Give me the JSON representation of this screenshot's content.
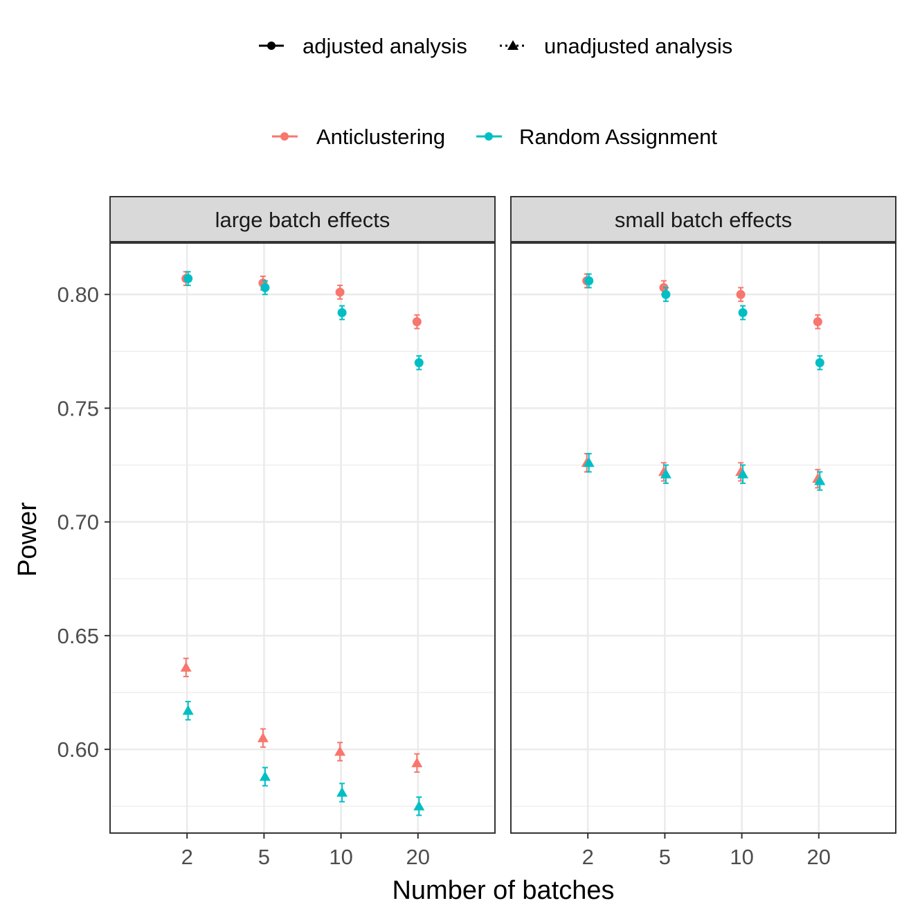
{
  "chart_data": {
    "type": "scatter",
    "xlabel": "Number of batches",
    "ylabel": "Power",
    "x_categories": [
      "2",
      "5",
      "10",
      "20"
    ],
    "ylim": [
      0.5632,
      0.8226
    ],
    "yticks": [
      0.6,
      0.65,
      0.7,
      0.75,
      0.8
    ],
    "ytick_labels": [
      "0.60",
      "0.65",
      "0.70",
      "0.75",
      "0.80"
    ],
    "grid": true,
    "legend_position": "top",
    "shape_legend": [
      {
        "label": "adjusted analysis",
        "shape": "circle",
        "line": "solid"
      },
      {
        "label": "unadjusted analysis",
        "shape": "triangle",
        "line": "dotted"
      }
    ],
    "color_legend": [
      {
        "label": "Anticlustering",
        "color": "#F8766D"
      },
      {
        "label": "Random Assignment",
        "color": "#00BFC4"
      }
    ],
    "panels": [
      {
        "title": "large batch effects",
        "series": [
          {
            "method": "Anticlustering",
            "analysis": "adjusted",
            "values": [
              0.807,
              0.805,
              0.801,
              0.788
            ],
            "errors": [
              0.003,
              0.003,
              0.003,
              0.003
            ]
          },
          {
            "method": "Random Assignment",
            "analysis": "adjusted",
            "values": [
              0.807,
              0.803,
              0.792,
              0.77
            ],
            "errors": [
              0.003,
              0.003,
              0.003,
              0.003
            ]
          },
          {
            "method": "Anticlustering",
            "analysis": "unadjusted",
            "values": [
              0.636,
              0.605,
              0.599,
              0.594
            ],
            "errors": [
              0.004,
              0.004,
              0.004,
              0.004
            ]
          },
          {
            "method": "Random Assignment",
            "analysis": "unadjusted",
            "values": [
              0.617,
              0.588,
              0.581,
              0.575
            ],
            "errors": [
              0.004,
              0.004,
              0.004,
              0.004
            ]
          }
        ]
      },
      {
        "title": "small batch effects",
        "series": [
          {
            "method": "Anticlustering",
            "analysis": "adjusted",
            "values": [
              0.806,
              0.803,
              0.8,
              0.788
            ],
            "errors": [
              0.003,
              0.003,
              0.003,
              0.003
            ]
          },
          {
            "method": "Random Assignment",
            "analysis": "adjusted",
            "values": [
              0.806,
              0.8,
              0.792,
              0.77
            ],
            "errors": [
              0.003,
              0.003,
              0.003,
              0.003
            ]
          },
          {
            "method": "Anticlustering",
            "analysis": "unadjusted",
            "values": [
              0.726,
              0.722,
              0.722,
              0.719
            ],
            "errors": [
              0.004,
              0.004,
              0.004,
              0.004
            ]
          },
          {
            "method": "Random Assignment",
            "analysis": "unadjusted",
            "values": [
              0.726,
              0.721,
              0.721,
              0.718
            ],
            "errors": [
              0.004,
              0.004,
              0.004,
              0.004
            ]
          }
        ]
      }
    ]
  }
}
